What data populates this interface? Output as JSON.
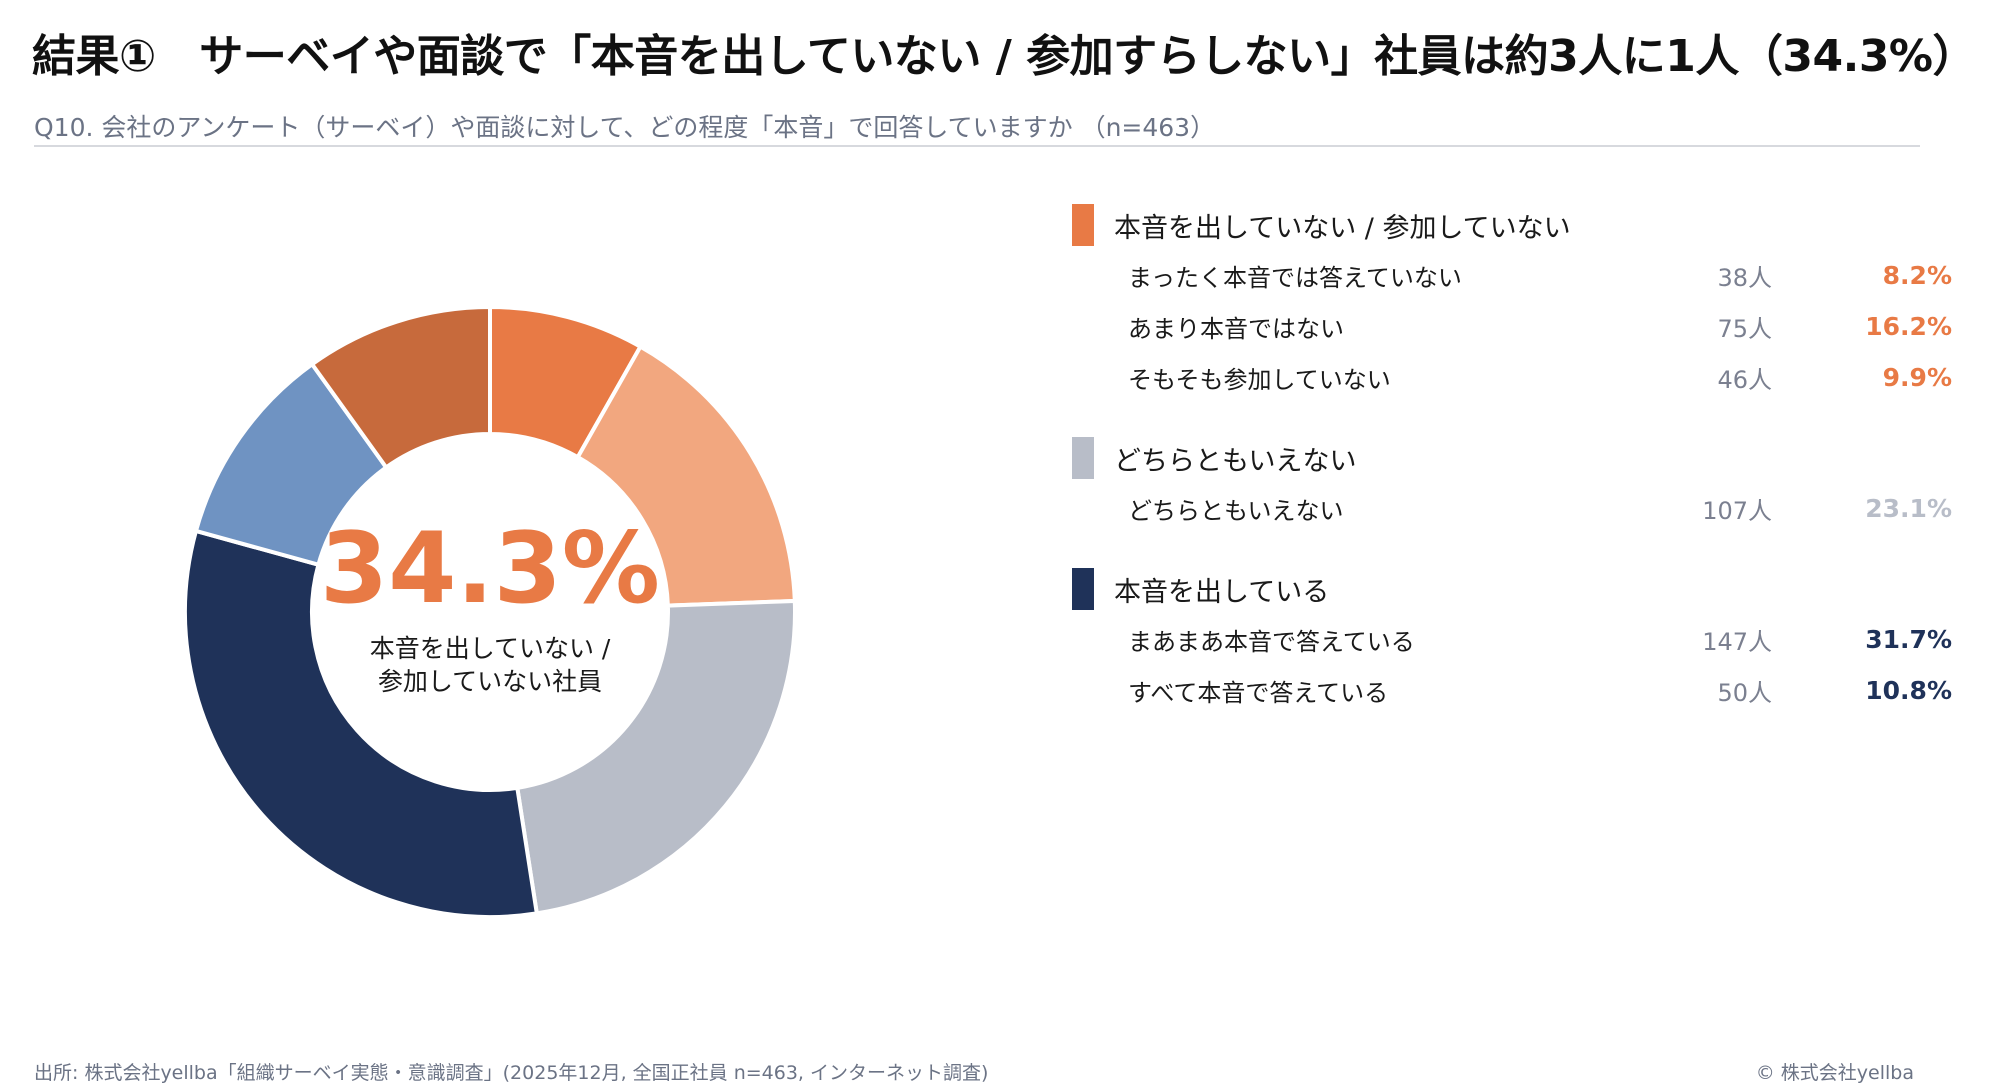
{
  "header": {
    "title": "結果①　サーベイや面談で「本音を出していない / 参加すらしない」社員は約3人に1人（34.3%）",
    "subtitle": "Q10. 会社のアンケート（サーベイ）や面談に対して、どの程度「本音」で回答していますか （n=463）"
  },
  "center": {
    "value": "34.3%",
    "label": "本音を出していない /\n参加していない社員"
  },
  "legend": {
    "groups": [
      {
        "title": "本音を出していない / 参加していない",
        "color": "#e87a45",
        "items": [
          {
            "label": "まったく本音では答えていない",
            "count": "38人",
            "pct": "8.2%"
          },
          {
            "label": "あまり本音ではない",
            "count": "75人",
            "pct": "16.2%"
          },
          {
            "label": "そもそも参加していない",
            "count": "46人",
            "pct": "9.9%"
          }
        ]
      },
      {
        "title": "どちらともいえない",
        "color": "#b8bdc8",
        "items": [
          {
            "label": "どちらともいえない",
            "count": "107人",
            "pct": "23.1%"
          }
        ]
      },
      {
        "title": "本音を出している",
        "color": "#1f3259",
        "items": [
          {
            "label": "まあまあ本音で答えている",
            "count": "147人",
            "pct": "31.7%"
          },
          {
            "label": "すべて本音で答えている",
            "count": "50人",
            "pct": "10.8%"
          }
        ]
      }
    ]
  },
  "chart_data": {
    "type": "pie",
    "variant": "donut",
    "n": 463,
    "slices": [
      {
        "label": "まったく本音では答えていない",
        "count": 38,
        "value": 8.2,
        "color": "#e87a45"
      },
      {
        "label": "あまり本音ではない",
        "count": 75,
        "value": 16.2,
        "color": "#f2a77f"
      },
      {
        "label": "どちらともいえない",
        "count": 107,
        "value": 23.1,
        "color": "#b8bdc8"
      },
      {
        "label": "まあまあ本音で答えている",
        "count": 147,
        "value": 31.7,
        "color": "#1f3259"
      },
      {
        "label": "すべて本音で答えている",
        "count": 50,
        "value": 10.8,
        "color": "#6f93c2"
      },
      {
        "label": "そもそも参加していない",
        "count": 46,
        "value": 9.9,
        "color": "#c76a3c"
      }
    ],
    "legend_position": "right"
  },
  "footer": {
    "source": "出所: 株式会社yellba「組織サーベイ実態・意識調査」(2025年12月, 全国正社員 n=463, インターネット調査)",
    "copyright": "© 株式会社yellba"
  }
}
